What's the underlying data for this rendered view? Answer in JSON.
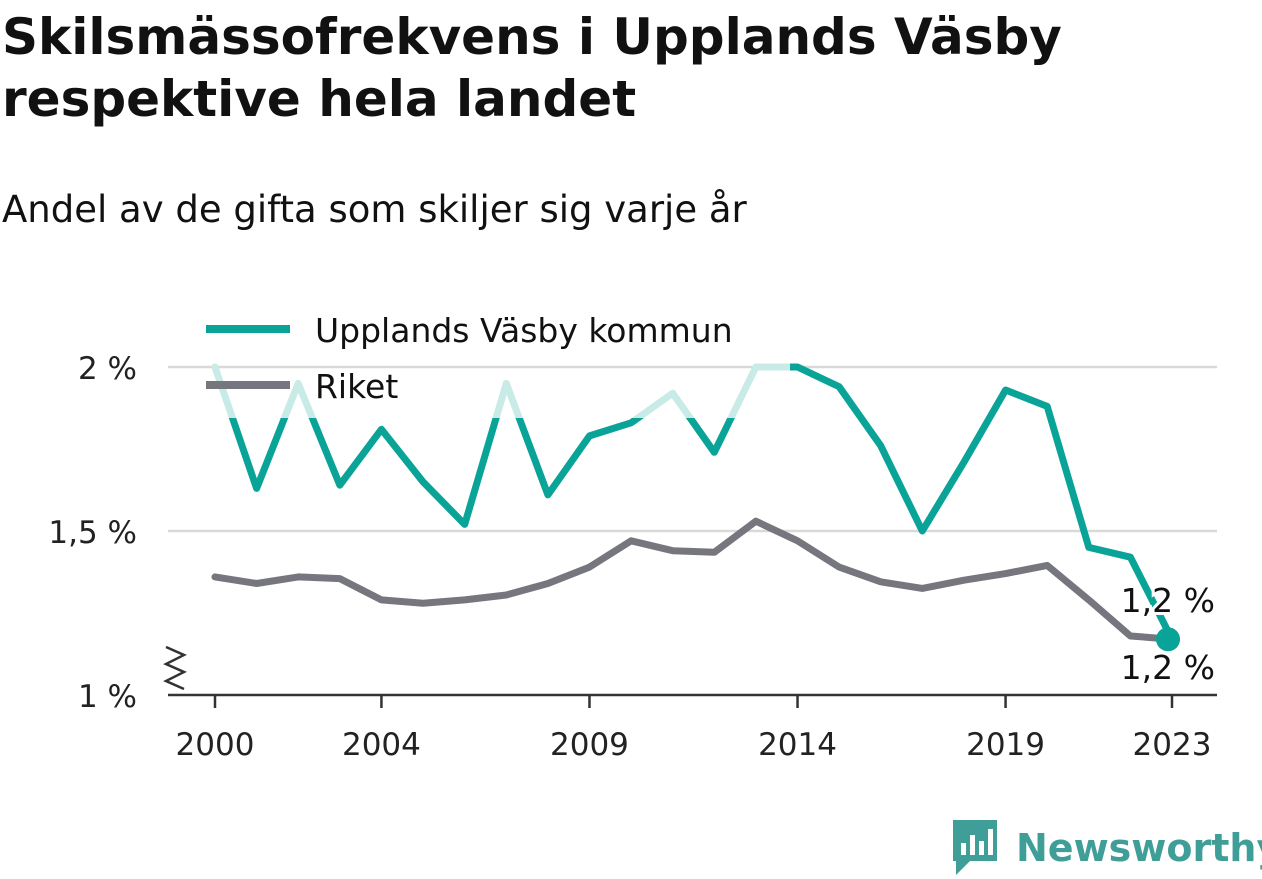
{
  "title": "Skilsmässofrekvens i Upplands Väsby respektive hela landet",
  "subtitle": "Andel av de gifta som skiljer sig varje år",
  "brand": "Newsworthy",
  "colors": {
    "vasby": "#0aa398",
    "vasby_light": "#c8ebe8",
    "riket": "#76767e",
    "grid": "#d9d9d9",
    "axis": "#333333"
  },
  "chart_data": {
    "type": "line",
    "y_unit": "%",
    "ylim": [
      1.0,
      2.0
    ],
    "y_ticks": [
      {
        "value": 1.0,
        "label": "1 %"
      },
      {
        "value": 1.5,
        "label": "1,5 %"
      },
      {
        "value": 2.0,
        "label": "2 %"
      }
    ],
    "x_ticks": [
      2000,
      2004,
      2009,
      2014,
      2019,
      2023
    ],
    "x_tick_labels": [
      "2000",
      "2004",
      "2009",
      "2014",
      "2019",
      "2023"
    ],
    "legend_position": "top-left",
    "grid": true,
    "series": [
      {
        "name": "Upplands Väsby kommun",
        "x": [
          2000,
          2001,
          2002,
          2003,
          2004,
          2005,
          2006,
          2007,
          2008,
          2009,
          2010,
          2011,
          2012,
          2013,
          2014,
          2015,
          2016,
          2017,
          2018,
          2019,
          2020,
          2021,
          2022,
          2023
        ],
        "values": [
          2.0,
          1.63,
          1.95,
          1.64,
          1.81,
          1.65,
          1.52,
          1.95,
          1.61,
          1.79,
          1.83,
          1.92,
          1.74,
          2.0,
          2.0,
          1.94,
          1.76,
          1.5,
          1.71,
          1.93,
          1.88,
          1.45,
          1.42,
          1.17
        ],
        "end_label": "1,2 %"
      },
      {
        "name": "Riket",
        "x": [
          2000,
          2001,
          2002,
          2003,
          2004,
          2005,
          2006,
          2007,
          2008,
          2009,
          2010,
          2011,
          2012,
          2013,
          2014,
          2015,
          2016,
          2017,
          2018,
          2019,
          2020,
          2021,
          2022,
          2023
        ],
        "values": [
          1.36,
          1.34,
          1.36,
          1.355,
          1.29,
          1.28,
          1.29,
          1.305,
          1.34,
          1.39,
          1.47,
          1.44,
          1.435,
          1.53,
          1.47,
          1.39,
          1.345,
          1.325,
          1.35,
          1.37,
          1.395,
          1.29,
          1.18,
          1.17
        ],
        "end_label": "1,2 %"
      }
    ]
  }
}
